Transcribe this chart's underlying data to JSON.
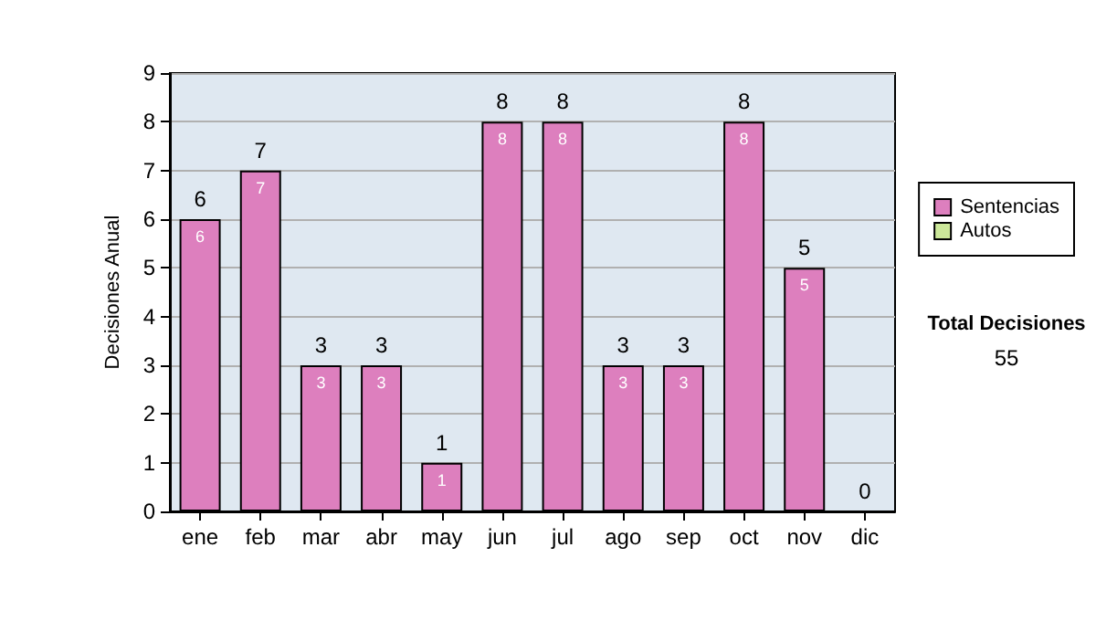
{
  "chart_data": {
    "type": "bar",
    "stacked": true,
    "ylabel": "Decisiones Anual",
    "categories": [
      "ene",
      "feb",
      "mar",
      "abr",
      "may",
      "jun",
      "jul",
      "ago",
      "sep",
      "oct",
      "nov",
      "dic"
    ],
    "series": [
      {
        "name": "Sentencias",
        "color": "#dd7fbe",
        "values": [
          6,
          7,
          3,
          3,
          1,
          8,
          8,
          3,
          3,
          8,
          5,
          0
        ],
        "value_labels": [
          "6",
          "7",
          "3",
          "3",
          "1",
          "8",
          "8",
          "3",
          "3",
          "8",
          "5",
          null
        ]
      },
      {
        "name": "Autos",
        "color": "#cce89a",
        "values": [
          0,
          0,
          0,
          0,
          0,
          0,
          0,
          0,
          0,
          0,
          0,
          0
        ]
      }
    ],
    "totals": [
      "6",
      "7",
      "3",
      "3",
      "1",
      "8",
      "8",
      "3",
      "3",
      "8",
      "5",
      "0"
    ],
    "ylim": [
      0,
      9
    ],
    "yticks": [
      0,
      1,
      2,
      3,
      4,
      5,
      6,
      7,
      8,
      9
    ],
    "grid": "y",
    "legend": "right",
    "annotations": [
      "Total Decisiones",
      "55"
    ]
  }
}
